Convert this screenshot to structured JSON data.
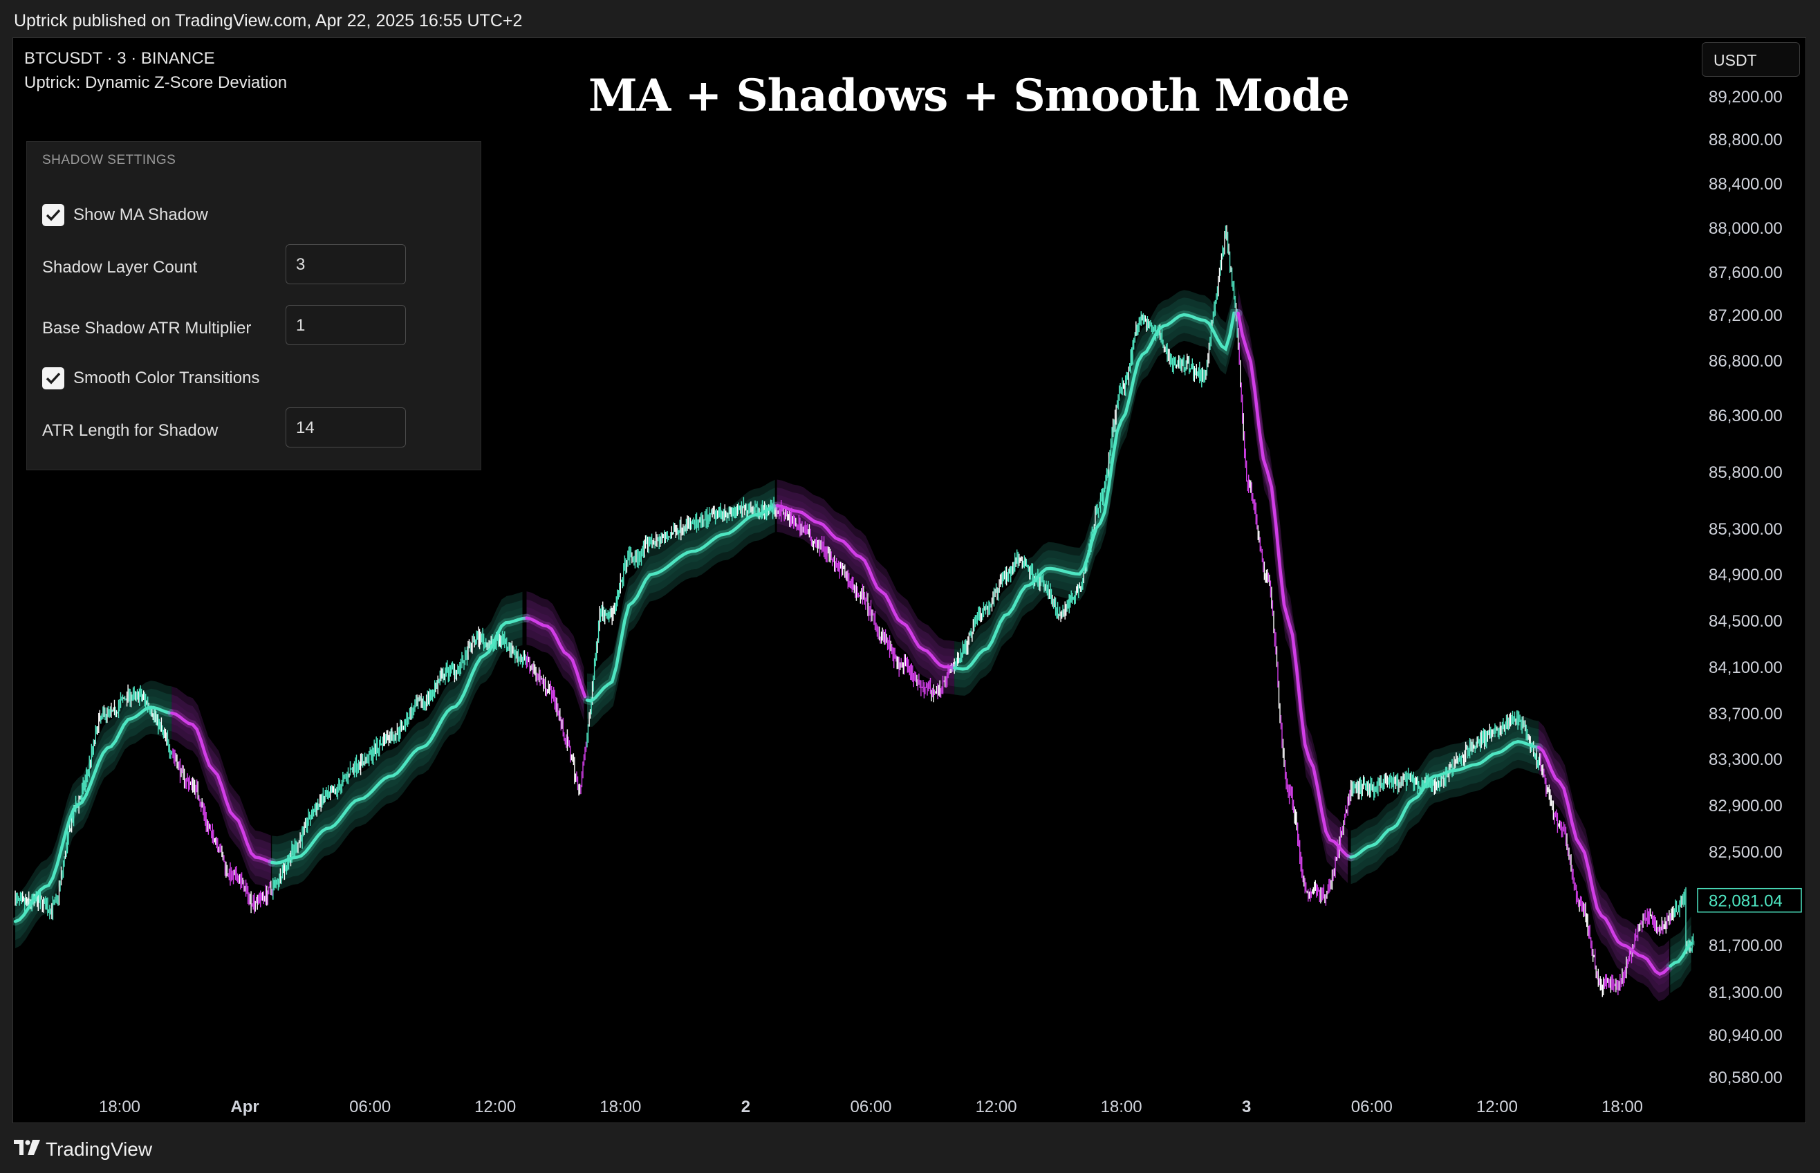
{
  "header": {
    "published_text": "Uptrick published on TradingView.com, Apr 22, 2025 16:55 UTC+2"
  },
  "legend": {
    "symbol": "BTCUSDT · 3 · BINANCE",
    "indicator": "Uptrick: Dynamic Z-Score Deviation"
  },
  "currency": "USDT",
  "settings": {
    "heading": "SHADOW SETTINGS",
    "show_ma_shadow": {
      "label": "Show MA Shadow",
      "checked": true
    },
    "shadow_layer_count": {
      "label": "Shadow Layer Count",
      "value": "3"
    },
    "base_shadow_atr": {
      "label": "Base Shadow ATR Multiplier",
      "value": "1"
    },
    "smooth_color": {
      "label": "Smooth Color Transitions",
      "checked": true
    },
    "atr_length": {
      "label": "ATR Length for Shadow",
      "value": "14"
    }
  },
  "footer": {
    "brand": "TradingView"
  },
  "colors": {
    "bull": "#4ee6c2",
    "bear": "#d23ee8",
    "bull_shadow": "#103d33",
    "bear_shadow": "#3d1246",
    "candle_white": "#ffffff"
  },
  "chart_data": {
    "type": "line",
    "title": "MA + Shadows + Smooth Mode",
    "ylim": [
      80450,
      89400
    ],
    "y_ticks": [
      89200,
      88800,
      88400,
      88000,
      87600,
      87200,
      86800,
      86300,
      85800,
      85300,
      84900,
      84500,
      84100,
      83700,
      83300,
      82900,
      82500,
      81700,
      81300,
      80940,
      80580
    ],
    "y_tick_labels": [
      "89,200.00",
      "88,800.00",
      "88,400.00",
      "88,000.00",
      "87,600.00",
      "87,200.00",
      "86,800.00",
      "86,300.00",
      "85,800.00",
      "85,300.00",
      "84,900.00",
      "84,500.00",
      "84,100.00",
      "83,700.00",
      "83,300.00",
      "82,900.00",
      "82,500.00",
      "81,700.00",
      "81,300.00",
      "80,940.00",
      "80,580.00"
    ],
    "last_price": {
      "value": 82081.04,
      "label": "82,081.04"
    },
    "x_labels": [
      {
        "t": 1.0,
        "label": "18:00",
        "bold": false
      },
      {
        "t": 7.0,
        "label": "Apr",
        "bold": true
      },
      {
        "t": 13.0,
        "label": "06:00",
        "bold": false
      },
      {
        "t": 19.0,
        "label": "12:00",
        "bold": false
      },
      {
        "t": 25.0,
        "label": "18:00",
        "bold": false
      },
      {
        "t": 31.0,
        "label": "2",
        "bold": true
      },
      {
        "t": 37.0,
        "label": "06:00",
        "bold": false
      },
      {
        "t": 43.0,
        "label": "12:00",
        "bold": false
      },
      {
        "t": 49.0,
        "label": "18:00",
        "bold": false
      },
      {
        "t": 55.0,
        "label": "3",
        "bold": true
      },
      {
        "t": 61.0,
        "label": "06:00",
        "bold": false
      },
      {
        "t": 67.0,
        "label": "12:00",
        "bold": false
      },
      {
        "t": 73.0,
        "label": "18:00",
        "bold": false
      }
    ],
    "series": [
      {
        "name": "MA",
        "points": [
          [
            -4.0,
            81900
          ],
          [
            -2.5,
            82200
          ],
          [
            -1.0,
            82900
          ],
          [
            0.5,
            83400
          ],
          [
            1.5,
            83650
          ],
          [
            2.5,
            83750
          ],
          [
            3.5,
            83700
          ],
          [
            4.5,
            83600
          ],
          [
            5.5,
            83200
          ],
          [
            6.5,
            82800
          ],
          [
            7.5,
            82450
          ],
          [
            8.5,
            82400
          ],
          [
            9.5,
            82450
          ],
          [
            11.0,
            82700
          ],
          [
            12.5,
            82950
          ],
          [
            14.0,
            83150
          ],
          [
            15.5,
            83400
          ],
          [
            17.0,
            83750
          ],
          [
            18.5,
            84200
          ],
          [
            19.5,
            84480
          ],
          [
            20.5,
            84520
          ],
          [
            21.5,
            84450
          ],
          [
            22.5,
            84200
          ],
          [
            23.5,
            83800
          ],
          [
            24.5,
            83950
          ],
          [
            25.5,
            84650
          ],
          [
            26.5,
            84900
          ],
          [
            28.5,
            85100
          ],
          [
            30.0,
            85250
          ],
          [
            31.5,
            85420
          ],
          [
            32.5,
            85500
          ],
          [
            33.5,
            85450
          ],
          [
            34.5,
            85350
          ],
          [
            35.5,
            85200
          ],
          [
            36.5,
            85050
          ],
          [
            37.5,
            84750
          ],
          [
            38.5,
            84480
          ],
          [
            39.5,
            84250
          ],
          [
            40.5,
            84100
          ],
          [
            41.5,
            84080
          ],
          [
            42.5,
            84250
          ],
          [
            43.5,
            84550
          ],
          [
            44.5,
            84800
          ],
          [
            45.5,
            84950
          ],
          [
            47.0,
            84900
          ],
          [
            48.0,
            85350
          ],
          [
            49.0,
            86250
          ],
          [
            50.0,
            86850
          ],
          [
            51.0,
            87100
          ],
          [
            52.0,
            87200
          ],
          [
            53.0,
            87150
          ],
          [
            54.0,
            86900
          ],
          [
            54.5,
            87250
          ],
          [
            55.0,
            86900
          ],
          [
            56.0,
            85800
          ],
          [
            57.0,
            84500
          ],
          [
            58.0,
            83300
          ],
          [
            59.0,
            82600
          ],
          [
            60.0,
            82450
          ],
          [
            61.0,
            82550
          ],
          [
            62.0,
            82700
          ],
          [
            63.0,
            82950
          ],
          [
            64.0,
            83150
          ],
          [
            65.0,
            83200
          ],
          [
            66.0,
            83250
          ],
          [
            67.0,
            83350
          ],
          [
            68.0,
            83450
          ],
          [
            69.0,
            83400
          ],
          [
            70.0,
            83100
          ],
          [
            71.0,
            82550
          ],
          [
            72.0,
            81950
          ],
          [
            73.0,
            81700
          ],
          [
            74.0,
            81600
          ],
          [
            74.8,
            81450
          ],
          [
            75.6,
            81550
          ],
          [
            76.4,
            81720
          ]
        ]
      }
    ],
    "trend_segments": [
      {
        "from": -4.0,
        "to": 3.5,
        "trend": "bull"
      },
      {
        "from": 3.5,
        "to": 8.3,
        "trend": "bear"
      },
      {
        "from": 8.3,
        "to": 20.5,
        "trend": "bull"
      },
      {
        "from": 20.5,
        "to": 23.4,
        "trend": "bear"
      },
      {
        "from": 23.4,
        "to": 32.5,
        "trend": "bull"
      },
      {
        "from": 32.5,
        "to": 41.0,
        "trend": "bear"
      },
      {
        "from": 41.0,
        "to": 54.6,
        "trend": "bull"
      },
      {
        "from": 54.6,
        "to": 60.0,
        "trend": "bear"
      },
      {
        "from": 60.0,
        "to": 69.0,
        "trend": "bull"
      },
      {
        "from": 69.0,
        "to": 75.3,
        "trend": "bear"
      },
      {
        "from": 75.3,
        "to": 76.4,
        "trend": "bull"
      }
    ],
    "shadow_layers": 3,
    "shadow_atr_multiplier": 1
  }
}
